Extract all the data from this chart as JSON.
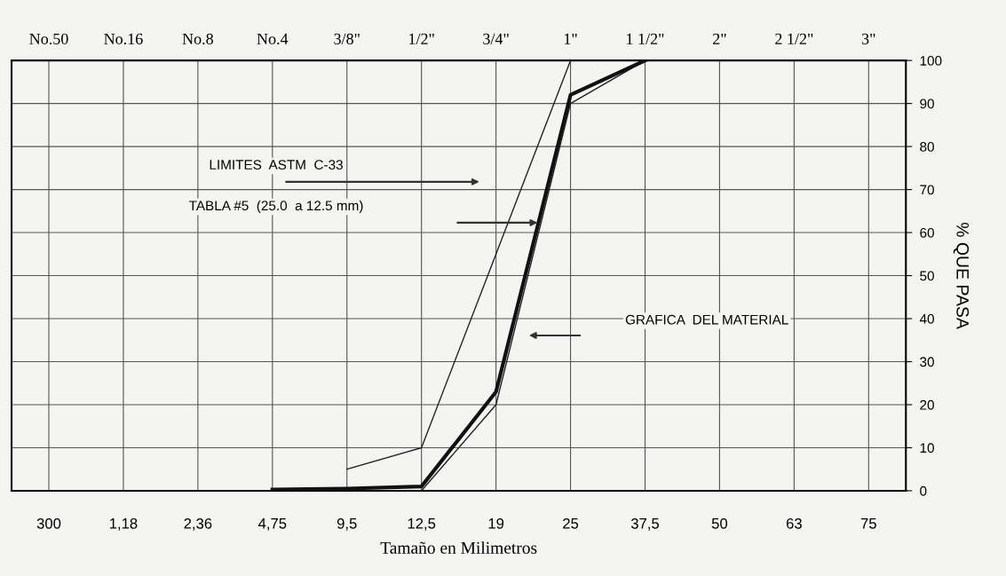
{
  "chart_data": {
    "type": "line",
    "xlabel": "Tamaño en Milimetros",
    "ylabel": "% QUE PASA",
    "categories": [
      "300",
      "1,18",
      "2,36",
      "4,75",
      "9,5",
      "12,5",
      "19",
      "25",
      "37,5",
      "50",
      "63",
      "75"
    ],
    "ylim": [
      0,
      100
    ],
    "yticks": [
      0,
      10,
      20,
      30,
      40,
      50,
      60,
      70,
      80,
      90,
      100
    ],
    "grid": true,
    "marker": "none",
    "line_style": "solid",
    "series": [
      {
        "color": "#222222",
        "values": [
          null,
          null,
          null,
          null,
          5,
          10,
          null,
          100,
          null,
          null,
          null,
          null
        ]
      },
      {
        "color": "#222222",
        "values": [
          null,
          null,
          null,
          null,
          null,
          0,
          20,
          90,
          100,
          null,
          null,
          null
        ]
      },
      {
        "color": "#111111",
        "values": [
          null,
          null,
          null,
          0.3,
          0.5,
          1,
          23,
          92,
          100,
          null,
          null,
          null
        ]
      }
    ],
    "annotations": [
      "No.50",
      "No.16",
      "No.8",
      "No.4",
      "3/8\"",
      "1/2\"",
      "3/4\"",
      "1\"",
      "1 1/2\"",
      "2\"",
      "2 1/2\"",
      "3\"",
      "LIMITES  ASTM  C-33",
      "TABLA #5  (25.0  a 12.5 mm)",
      "GRAFICA  DEL MATERIAL"
    ]
  }
}
